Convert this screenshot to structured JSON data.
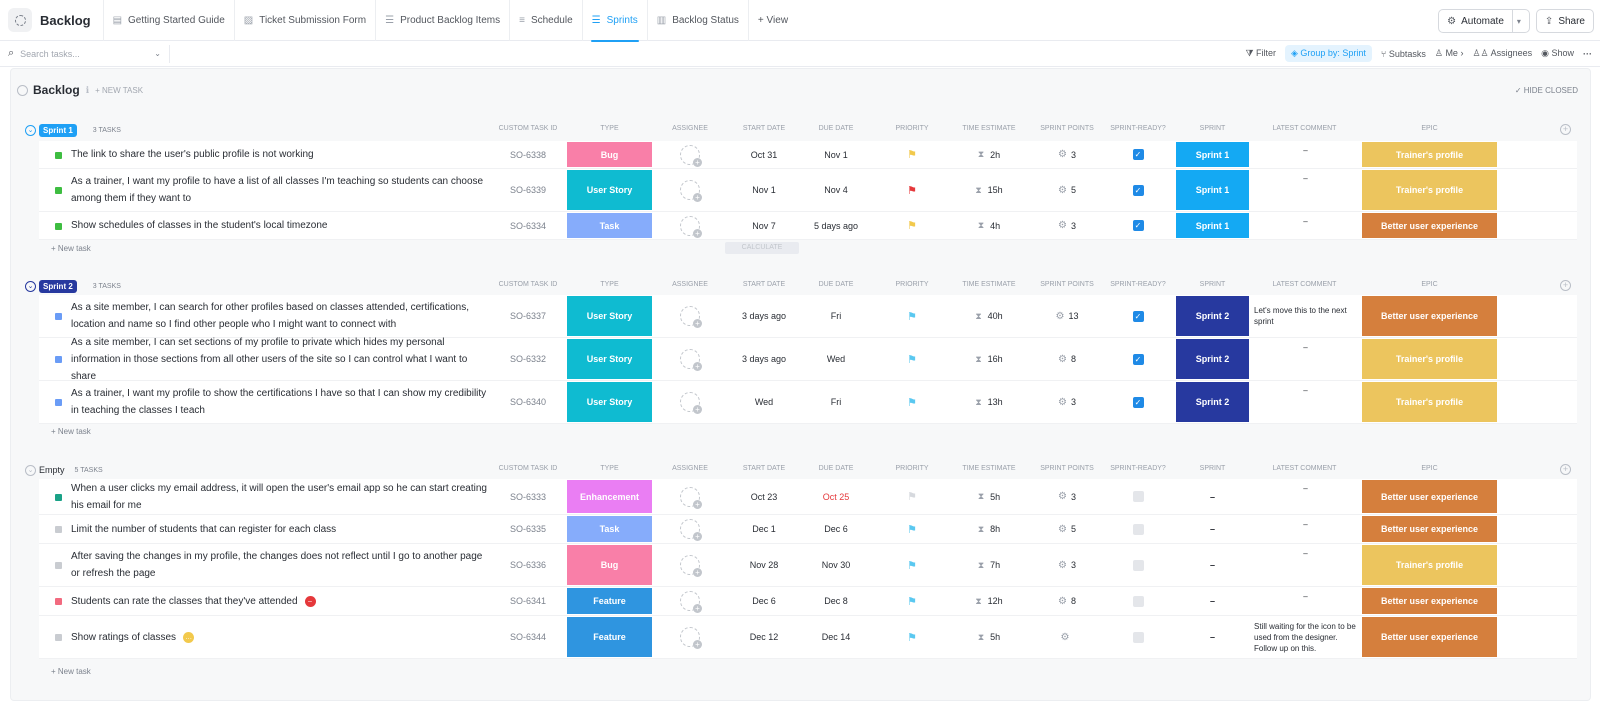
{
  "header": {
    "title": "Backlog",
    "tabs": [
      {
        "label": "Getting Started Guide",
        "icon": "doc-icon"
      },
      {
        "label": "Ticket Submission Form",
        "icon": "form-icon"
      },
      {
        "label": "Product Backlog Items",
        "icon": "list-icon"
      },
      {
        "label": "Schedule",
        "icon": "gantt-icon"
      },
      {
        "label": "Sprints",
        "icon": "list-icon",
        "active": true
      },
      {
        "label": "Backlog Status",
        "icon": "board-icon"
      }
    ],
    "add_view": "+ View",
    "automate": "Automate",
    "share": "Share"
  },
  "toolbar": {
    "search_placeholder": "Search tasks...",
    "filter": "Filter",
    "group_by": "Group by: Sprint",
    "subtasks": "Subtasks",
    "me": "Me",
    "assignees": "Assignees",
    "show": "Show",
    "more": "···"
  },
  "list": {
    "name": "Backlog",
    "info": "ℹ",
    "new_task": "+ NEW TASK",
    "hide_closed": "✓ HIDE CLOSED",
    "columns": {
      "id": "CUSTOM TASK ID",
      "type": "TYPE",
      "assignee": "ASSIGNEE",
      "start": "START DATE",
      "due": "DUE DATE",
      "priority": "PRIORITY",
      "estimate": "TIME ESTIMATE",
      "points": "SPRINT POINTS",
      "ready": "SPRINT-READY?",
      "sprint": "SPRINT",
      "comment": "LATEST COMMENT",
      "epic": "EPIC"
    },
    "new_task_row": "+ New task",
    "calculate": "CALCULATE"
  },
  "colors": {
    "bug": "#f97fa8",
    "user_story": "#0fbbd1",
    "task": "#86acfb",
    "enhancement": "#ea7ef3",
    "feature": "#2f95e0",
    "sprint1": "#14a9f3",
    "sprint2": "#27399f",
    "epic_trainer": "#ecc55e",
    "epic_better": "#d57f3d"
  },
  "groups": [
    {
      "name": "Sprint 1",
      "count": "3 TASKS",
      "badge_color": "#1fa0f5",
      "rows": [
        {
          "name": "The link to share the user's public profile is not working",
          "status_color": "#3ebd41",
          "id": "SO-6338",
          "type": "Bug",
          "type_color": "#f97fa8",
          "start": "Oct 31",
          "due": "Nov 1",
          "due_color": "#292d34",
          "flag": "#f2c94c",
          "estimate": "2h",
          "points": "3",
          "ready": true,
          "sprint": "Sprint 1",
          "sprint_color": "#14a9f3",
          "comment": "–",
          "epic": "Trainer's profile",
          "epic_color": "#ecc55e"
        },
        {
          "name": "As a trainer, I want my profile to have a list of all classes I'm teaching so students can choose among them if they want to",
          "status_color": "#3ebd41",
          "id": "SO-6339",
          "type": "User Story",
          "type_color": "#0fbbd1",
          "start": "Nov 1",
          "due": "Nov 4",
          "due_color": "#292d34",
          "flag": "#e5383b",
          "estimate": "15h",
          "points": "5",
          "ready": true,
          "sprint": "Sprint 1",
          "sprint_color": "#14a9f3",
          "comment": "–",
          "epic": "Trainer's profile",
          "epic_color": "#ecc55e"
        },
        {
          "name": "Show schedules of classes in the student's local timezone",
          "status_color": "#3ebd41",
          "id": "SO-6334",
          "type": "Task",
          "type_color": "#86acfb",
          "start": "Nov 7",
          "due": "5 days ago",
          "due_color": "#292d34",
          "flag": "#f2c94c",
          "estimate": "4h",
          "points": "3",
          "ready": true,
          "sprint": "Sprint 1",
          "sprint_color": "#14a9f3",
          "comment": "–",
          "epic": "Better user experience",
          "epic_color": "#d57f3d"
        }
      ]
    },
    {
      "name": "Sprint 2",
      "count": "3 TASKS",
      "badge_color": "#27399f",
      "rows": [
        {
          "name": "As a site member, I can search for other profiles based on classes attended, certifications, location and name so I find other people who I might want to connect with",
          "status_color": "#6a9cf6",
          "id": "SO-6337",
          "type": "User Story",
          "type_color": "#0fbbd1",
          "start": "3 days ago",
          "due": "Fri",
          "due_color": "#292d34",
          "flag": "#5ac8f0",
          "estimate": "40h",
          "points": "13",
          "ready": true,
          "sprint": "Sprint 2",
          "sprint_color": "#27399f",
          "comment": "Let's move this to the next sprint",
          "epic": "Better user experience",
          "epic_color": "#d57f3d"
        },
        {
          "name": "As a site member, I can set sections of my profile to private which hides my personal information in those sections from all other users of the site so I can control what I want to share",
          "status_color": "#6a9cf6",
          "id": "SO-6332",
          "type": "User Story",
          "type_color": "#0fbbd1",
          "start": "3 days ago",
          "due": "Wed",
          "due_color": "#292d34",
          "flag": "#5ac8f0",
          "estimate": "16h",
          "points": "8",
          "ready": true,
          "sprint": "Sprint 2",
          "sprint_color": "#27399f",
          "comment": "–",
          "epic": "Trainer's profile",
          "epic_color": "#ecc55e"
        },
        {
          "name": "As a trainer, I want my profile to show the certifications I have so that I can show my credibility in teaching the classes I teach",
          "status_color": "#6a9cf6",
          "id": "SO-6340",
          "type": "User Story",
          "type_color": "#0fbbd1",
          "start": "Wed",
          "due": "Fri",
          "due_color": "#292d34",
          "flag": "#5ac8f0",
          "estimate": "13h",
          "points": "3",
          "ready": true,
          "sprint": "Sprint 2",
          "sprint_color": "#27399f",
          "comment": "–",
          "epic": "Trainer's profile",
          "epic_color": "#ecc55e"
        }
      ]
    },
    {
      "name": "Empty",
      "count": "5 TASKS",
      "badge_color": "",
      "rows": [
        {
          "name": "When a user clicks my email address, it will open the user's email app so he can start creating his email for me",
          "status_color": "#1aa287",
          "id": "SO-6333",
          "type": "Enhancement",
          "type_color": "#ea7ef3",
          "start": "Oct 23",
          "due": "Oct 25",
          "due_color": "#e5383b",
          "flag": "#d6d9de",
          "estimate": "5h",
          "points": "3",
          "ready": false,
          "sprint": "–",
          "sprint_color": "",
          "comment": "–",
          "epic": "Better user experience",
          "epic_color": "#d57f3d"
        },
        {
          "name": "Limit the number of students that can register for each class",
          "status_color": "#c9ccd1",
          "id": "SO-6335",
          "type": "Task",
          "type_color": "#86acfb",
          "start": "Dec 1",
          "due": "Dec 6",
          "due_color": "#292d34",
          "flag": "#5ac8f0",
          "estimate": "8h",
          "points": "5",
          "ready": false,
          "sprint": "–",
          "sprint_color": "",
          "comment": "–",
          "epic": "Better user experience",
          "epic_color": "#d57f3d"
        },
        {
          "name": "After saving the changes in my profile, the changes does not reflect until I go to another page or refresh the page",
          "status_color": "#c9ccd1",
          "id": "SO-6336",
          "type": "Bug",
          "type_color": "#f97fa8",
          "start": "Nov 28",
          "due": "Nov 30",
          "due_color": "#292d34",
          "flag": "#5ac8f0",
          "estimate": "7h",
          "points": "3",
          "ready": false,
          "sprint": "–",
          "sprint_color": "",
          "comment": "–",
          "epic": "Trainer's profile",
          "epic_color": "#ecc55e"
        },
        {
          "name": "Students can rate the classes that they've attended",
          "status_color": "#f26a7f",
          "id": "SO-6341",
          "type": "Feature",
          "type_color": "#2f95e0",
          "start": "Dec 6",
          "due": "Dec 8",
          "due_color": "#292d34",
          "flag": "#5ac8f0",
          "estimate": "12h",
          "points": "8",
          "ready": false,
          "sprint": "–",
          "sprint_color": "",
          "comment": "–",
          "epic": "Better user experience",
          "epic_color": "#d57f3d",
          "badge": "red"
        },
        {
          "name": "Show ratings of classes",
          "status_color": "#c9ccd1",
          "id": "SO-6344",
          "type": "Feature",
          "type_color": "#2f95e0",
          "start": "Dec 12",
          "due": "Dec 14",
          "due_color": "#292d34",
          "flag": "#5ac8f0",
          "estimate": "5h",
          "points": "",
          "ready": false,
          "sprint": "–",
          "sprint_color": "",
          "comment": "Still waiting for the icon to be used from the designer. Follow up on this.",
          "epic": "Better user experience",
          "epic_color": "#d57f3d",
          "badge": "yellow"
        }
      ]
    }
  ]
}
